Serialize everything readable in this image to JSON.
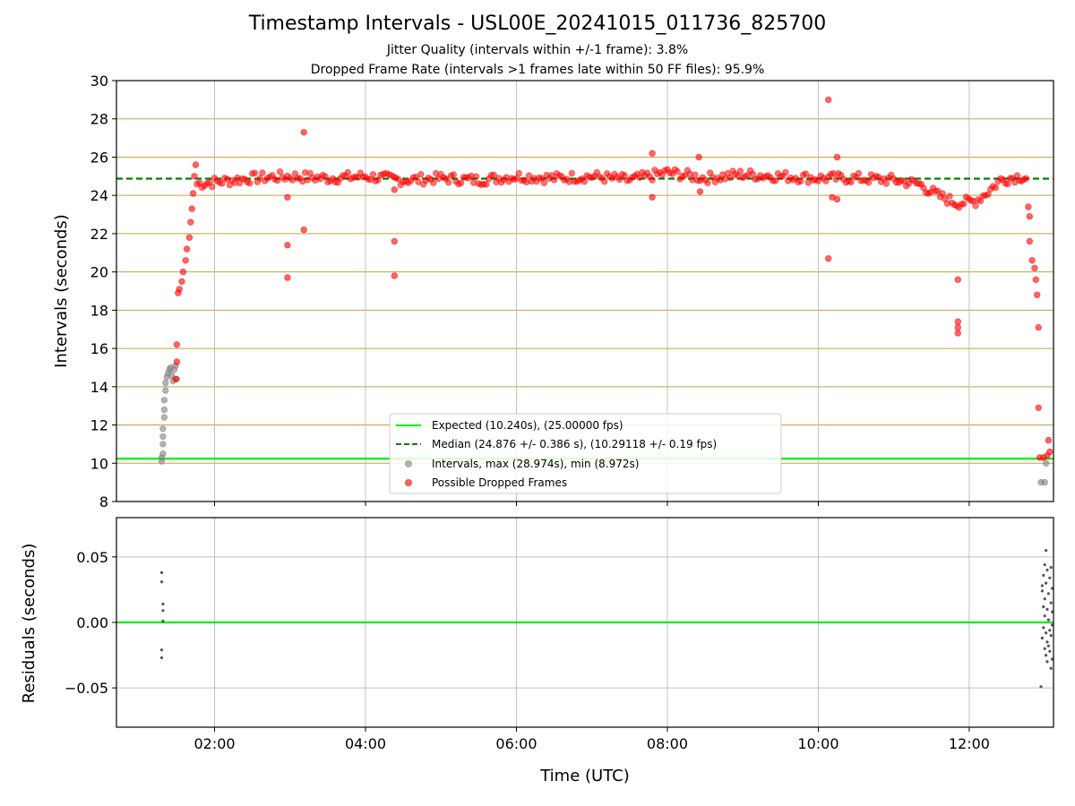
{
  "title": "Timestamp Intervals - USL00E_20241015_011736_825700",
  "subtitle_1": "Jitter Quality (intervals within +/-1 frame): 3.8%",
  "subtitle_2": "Dropped Frame Rate (intervals >1 frames late within 50 FF files): 95.9%",
  "colors": {
    "expected": "#00ee00",
    "median": "#008000",
    "intervals": "#808080",
    "dropped": "#ff0000",
    "hgrid_top": "#c8a040",
    "grid": "#c0c0c0",
    "residual_points": "#555555"
  },
  "chart_data": [
    {
      "type": "scatter",
      "ylabel": "Intervals (seconds)",
      "xlim": [
        "00:42",
        "13:07"
      ],
      "ylim": [
        8,
        30
      ],
      "y_ticks": [
        8,
        10,
        12,
        14,
        16,
        18,
        20,
        22,
        24,
        26,
        28,
        30
      ],
      "x_ticks": [
        "02:00",
        "04:00",
        "06:00",
        "08:00",
        "10:00",
        "12:00"
      ],
      "horizontal_grid": true,
      "vertical_grid": true,
      "legend_position": "lower-center",
      "lines": [
        {
          "name": "Expected (10.240s), (25.00000 fps)",
          "y": 10.24,
          "style": "solid"
        },
        {
          "name": "Median (24.876 +/- 0.386 s), (10.29118 +/- 0.19 fps)",
          "y": 24.876,
          "style": "dashed"
        }
      ],
      "series": [
        {
          "name": "Intervals, max (28.974s), min (8.972s)",
          "points": [
            [
              "01:18",
              10.1
            ],
            [
              "01:18",
              10.3
            ],
            [
              "01:19",
              10.5
            ],
            [
              "01:19",
              11.0
            ],
            [
              "01:19",
              11.4
            ],
            [
              "01:19",
              11.8
            ],
            [
              "01:20",
              12.4
            ],
            [
              "01:20",
              12.8
            ],
            [
              "01:20",
              13.3
            ],
            [
              "01:21",
              13.8
            ],
            [
              "01:21",
              14.2
            ],
            [
              "01:22",
              14.5
            ],
            [
              "01:23",
              14.7
            ],
            [
              "01:24",
              14.9
            ],
            [
              "01:25",
              15.0
            ],
            [
              "01:26",
              14.6
            ],
            [
              "01:27",
              14.3
            ],
            [
              "01:28",
              14.9
            ],
            [
              "01:29",
              15.1
            ],
            [
              "01:30",
              14.4
            ],
            [
              "12:57",
              9.0
            ],
            [
              "13:00",
              9.0
            ],
            [
              "13:01",
              10.0
            ]
          ]
        },
        {
          "name": "Possible Dropped Frames",
          "points": [
            [
              "01:29",
              14.4
            ],
            [
              "01:30",
              15.3
            ],
            [
              "01:30",
              16.2
            ],
            [
              "01:31",
              18.9
            ],
            [
              "01:32",
              19.1
            ],
            [
              "01:34",
              19.5
            ],
            [
              "01:35",
              20.0
            ],
            [
              "01:37",
              20.6
            ],
            [
              "01:38",
              21.2
            ],
            [
              "01:40",
              21.8
            ],
            [
              "01:41",
              22.6
            ],
            [
              "01:42",
              23.3
            ],
            [
              "01:43",
              24.1
            ],
            [
              "01:44",
              25.0
            ],
            [
              "01:45",
              25.6
            ],
            [
              "02:58",
              19.7
            ],
            [
              "02:58",
              21.4
            ],
            [
              "02:58",
              23.9
            ],
            [
              "03:11",
              22.2
            ],
            [
              "03:11",
              27.3
            ],
            [
              "04:23",
              21.6
            ],
            [
              "04:23",
              19.8
            ],
            [
              "04:23",
              24.3
            ],
            [
              "07:48",
              26.2
            ],
            [
              "07:48",
              23.9
            ],
            [
              "08:25",
              26.0
            ],
            [
              "08:26",
              24.2
            ],
            [
              "10:08",
              29.0
            ],
            [
              "10:08",
              20.7
            ],
            [
              "10:11",
              23.9
            ],
            [
              "10:15",
              26.0
            ],
            [
              "10:15",
              23.8
            ],
            [
              "11:51",
              19.6
            ],
            [
              "11:51",
              17.4
            ],
            [
              "11:51",
              17.1
            ],
            [
              "11:51",
              16.8
            ],
            [
              "12:47",
              23.4
            ],
            [
              "12:48",
              22.9
            ],
            [
              "12:48",
              21.6
            ],
            [
              "12:50",
              20.6
            ],
            [
              "12:52",
              20.2
            ],
            [
              "12:53",
              19.6
            ],
            [
              "12:54",
              18.8
            ],
            [
              "12:55",
              17.1
            ],
            [
              "12:55",
              12.9
            ],
            [
              "12:56",
              10.3
            ],
            [
              "12:59",
              10.3
            ],
            [
              "13:02",
              10.4
            ],
            [
              "13:03",
              11.2
            ],
            [
              "13:04",
              10.6
            ]
          ],
          "trend": [
            [
              "01:46",
              24.6
            ],
            [
              "02:00",
              24.7
            ],
            [
              "02:30",
              24.9
            ],
            [
              "03:00",
              25.0
            ],
            [
              "03:30",
              24.9
            ],
            [
              "04:00",
              25.0
            ],
            [
              "04:30",
              24.8
            ],
            [
              "05:00",
              24.9
            ],
            [
              "05:30",
              24.8
            ],
            [
              "06:00",
              25.0
            ],
            [
              "06:30",
              24.9
            ],
            [
              "07:00",
              25.0
            ],
            [
              "07:30",
              24.8
            ],
            [
              "08:00",
              25.2
            ],
            [
              "08:30",
              24.9
            ],
            [
              "09:00",
              25.1
            ],
            [
              "09:30",
              25.0
            ],
            [
              "10:00",
              24.9
            ],
            [
              "10:30",
              24.9
            ],
            [
              "11:00",
              24.8
            ],
            [
              "11:20",
              24.6
            ],
            [
              "11:35",
              24.0
            ],
            [
              "11:50",
              23.6
            ],
            [
              "12:05",
              23.7
            ],
            [
              "12:15",
              24.2
            ],
            [
              "12:25",
              24.8
            ],
            [
              "12:40",
              25.0
            ],
            [
              "12:47",
              24.9
            ]
          ]
        }
      ]
    },
    {
      "type": "scatter",
      "xlabel": "Time (UTC)",
      "ylabel": "Residuals (seconds)",
      "xlim": [
        "00:42",
        "13:07"
      ],
      "ylim": [
        -0.08,
        0.08
      ],
      "y_ticks": [
        {
          "value": 0.05,
          "label": "0.05"
        },
        {
          "value": 0.0,
          "label": "0.00"
        },
        {
          "value": -0.05,
          "label": "−0.05"
        }
      ],
      "x_ticks": [
        "02:00",
        "04:00",
        "06:00",
        "08:00",
        "10:00",
        "12:00"
      ],
      "zero_line": true,
      "points": [
        [
          "01:18",
          0.038
        ],
        [
          "01:18",
          0.031
        ],
        [
          "01:19",
          0.014
        ],
        [
          "01:19",
          0.009
        ],
        [
          "01:19",
          0.001
        ],
        [
          "01:18",
          -0.021
        ],
        [
          "01:18",
          -0.027
        ],
        [
          "12:57",
          -0.049
        ],
        [
          "12:58",
          0.028
        ],
        [
          "12:58",
          0.024
        ],
        [
          "12:58",
          -0.012
        ],
        [
          "12:59",
          0.036
        ],
        [
          "12:59",
          0.012
        ],
        [
          "12:59",
          -0.004
        ],
        [
          "13:00",
          0.044
        ],
        [
          "13:00",
          0.018
        ],
        [
          "13:00",
          -0.02
        ],
        [
          "13:00",
          0.005
        ],
        [
          "13:01",
          0.055
        ],
        [
          "13:01",
          0.03
        ],
        [
          "13:01",
          -0.008
        ],
        [
          "13:01",
          -0.025
        ],
        [
          "13:02",
          0.04
        ],
        [
          "13:02",
          0.01
        ],
        [
          "13:02",
          -0.015
        ],
        [
          "13:02",
          -0.03
        ],
        [
          "13:03",
          0.022
        ],
        [
          "13:03",
          0.002
        ],
        [
          "13:03",
          -0.018
        ],
        [
          "13:04",
          0.034
        ],
        [
          "13:04",
          -0.006
        ],
        [
          "13:04",
          -0.022
        ],
        [
          "13:05",
          0.042
        ],
        [
          "13:05",
          0.015
        ],
        [
          "13:05",
          -0.01
        ],
        [
          "13:06",
          0.026
        ],
        [
          "13:06",
          -0.002
        ],
        [
          "13:06",
          -0.028
        ],
        [
          "13:06",
          0.008
        ],
        [
          "13:05",
          -0.035
        ]
      ]
    }
  ]
}
